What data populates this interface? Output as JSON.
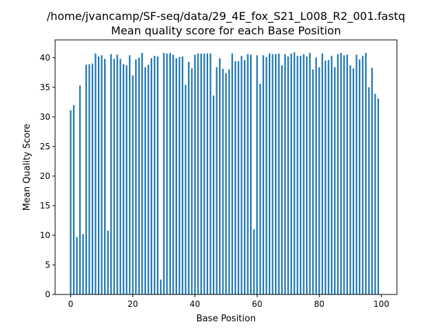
{
  "chart_data": {
    "type": "bar",
    "title": "/home/jvancamp/SF-seq/data/29_4E_fox_S21_L008_R2_001.fastq",
    "subtitle": "Mean quality score for each Base Position",
    "xlabel": "Base Position",
    "ylabel": "Mean Quality Score",
    "xlim": [
      -5,
      105
    ],
    "ylim": [
      0,
      43
    ],
    "xticks": [
      0,
      20,
      40,
      60,
      80,
      100
    ],
    "yticks": [
      0,
      5,
      10,
      15,
      20,
      25,
      30,
      35,
      40
    ],
    "grid": false,
    "bar_color": "#1f77b4",
    "x": [
      0,
      1,
      2,
      3,
      4,
      5,
      6,
      7,
      8,
      9,
      10,
      11,
      12,
      13,
      14,
      15,
      16,
      17,
      18,
      19,
      20,
      21,
      22,
      23,
      24,
      25,
      26,
      27,
      28,
      29,
      30,
      31,
      32,
      33,
      34,
      35,
      36,
      37,
      38,
      39,
      40,
      41,
      42,
      43,
      44,
      45,
      46,
      47,
      48,
      49,
      50,
      51,
      52,
      53,
      54,
      55,
      56,
      57,
      58,
      59,
      60,
      61,
      62,
      63,
      64,
      65,
      66,
      67,
      68,
      69,
      70,
      71,
      72,
      73,
      74,
      75,
      76,
      77,
      78,
      79,
      80,
      81,
      82,
      83,
      84,
      85,
      86,
      87,
      88,
      89,
      90,
      91,
      92,
      93,
      94,
      95,
      96,
      97,
      98,
      99,
      100
    ],
    "values": [
      31.1,
      32.0,
      9.7,
      35.3,
      10.2,
      38.8,
      38.9,
      39.0,
      40.7,
      40.2,
      40.4,
      39.8,
      10.8,
      40.6,
      39.8,
      40.5,
      39.8,
      38.9,
      38.7,
      40.4,
      37.0,
      39.7,
      40.0,
      40.8,
      38.4,
      38.8,
      39.9,
      40.3,
      40.2,
      2.5,
      40.8,
      40.7,
      40.8,
      40.5,
      39.9,
      40.1,
      40.2,
      35.4,
      39.3,
      38.2,
      40.5,
      40.7,
      40.7,
      40.7,
      40.7,
      40.7,
      33.6,
      38.4,
      39.9,
      38.1,
      37.4,
      38.0,
      40.7,
      39.4,
      39.4,
      40.3,
      39.6,
      40.6,
      40.5,
      11.0,
      40.4,
      35.6,
      40.4,
      40.1,
      40.7,
      40.6,
      40.6,
      40.7,
      38.7,
      40.6,
      40.2,
      40.7,
      40.9,
      40.3,
      40.3,
      40.6,
      40.2,
      40.8,
      38.0,
      40.0,
      38.4,
      40.7,
      39.5,
      39.6,
      40.3,
      38.4,
      40.6,
      40.8,
      40.4,
      40.5,
      38.7,
      38.2,
      40.5,
      39.7,
      40.3,
      40.8,
      35.0,
      38.3,
      33.9,
      33.1,
      0
    ]
  }
}
